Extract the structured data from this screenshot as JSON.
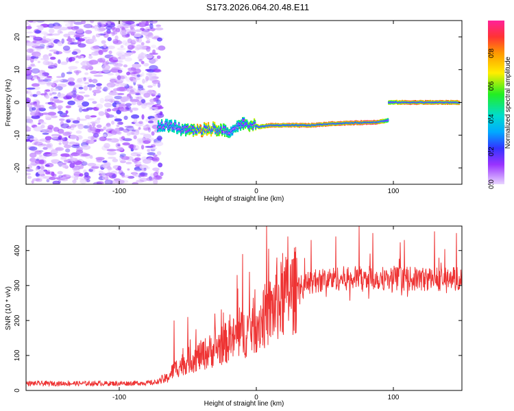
{
  "title": "S173.2026.064.20.48.E11",
  "chart_data": [
    {
      "type": "heatmap",
      "name": "spectrogram",
      "xlabel": "Height of straight line (km)",
      "ylabel": "Frequency (Hz)",
      "xlim": [
        -168,
        150
      ],
      "ylim": [
        -25,
        25
      ],
      "xticks": [
        -100,
        0,
        100
      ],
      "yticks": [
        -20,
        -10,
        0,
        10,
        20
      ],
      "colorbar": {
        "label": "Normalized spectral amplitude",
        "range": [
          0,
          1
        ],
        "ticks": [
          0.0,
          0.2,
          0.4,
          0.6,
          0.8
        ],
        "tick_labels": [
          "0.0",
          "0.2",
          "0.4",
          "0.6",
          "0.8"
        ]
      },
      "noise_region": {
        "x_start": -168,
        "x_end": -72
      },
      "ridge": [
        {
          "x": -72,
          "freq": -7.5,
          "amp": 0.45
        },
        {
          "x": -62,
          "freq": -7.0,
          "amp": 0.45
        },
        {
          "x": -55,
          "freq": -8.0,
          "amp": 0.45
        },
        {
          "x": -48,
          "freq": -8.5,
          "amp": 0.6
        },
        {
          "x": -40,
          "freq": -8.5,
          "amp": 0.8
        },
        {
          "x": -32,
          "freq": -8.0,
          "amp": 0.7
        },
        {
          "x": -24,
          "freq": -8.5,
          "amp": 0.6
        },
        {
          "x": -18,
          "freq": -8.5,
          "amp": 0.4
        },
        {
          "x": -12,
          "freq": -6.5,
          "amp": 0.5
        },
        {
          "x": -5,
          "freq": -6.5,
          "amp": 0.6
        },
        {
          "x": 2,
          "freq": -7.5,
          "amp": 0.7
        },
        {
          "x": 10,
          "freq": -7.0,
          "amp": 0.8
        },
        {
          "x": 40,
          "freq": -7.0,
          "amp": 0.85
        },
        {
          "x": 55,
          "freq": -6.5,
          "amp": 0.85
        },
        {
          "x": 88,
          "freq": -6.0,
          "amp": 0.9
        },
        {
          "x": 96,
          "freq": -5.5,
          "amp": 0.5
        },
        {
          "x": 97,
          "freq": 0.0,
          "amp": 0.6
        },
        {
          "x": 110,
          "freq": 0.0,
          "amp": 0.85
        },
        {
          "x": 148,
          "freq": 0.0,
          "amp": 0.8
        }
      ]
    },
    {
      "type": "line",
      "name": "snr",
      "xlabel": "Height of straight line (km)",
      "ylabel": "SNR (10 * v/v)",
      "xlim": [
        -168,
        150
      ],
      "ylim": [
        0,
        470
      ],
      "xticks": [
        -100,
        0,
        100
      ],
      "yticks": [
        0,
        100,
        200,
        300,
        400
      ],
      "color": "#ee3333",
      "envelope": [
        {
          "x": -168,
          "y": 20
        },
        {
          "x": -100,
          "y": 20
        },
        {
          "x": -75,
          "y": 22
        },
        {
          "x": -65,
          "y": 35
        },
        {
          "x": -60,
          "y": 60
        },
        {
          "x": -50,
          "y": 85
        },
        {
          "x": -40,
          "y": 100
        },
        {
          "x": -30,
          "y": 120
        },
        {
          "x": -20,
          "y": 140
        },
        {
          "x": -10,
          "y": 160
        },
        {
          "x": 0,
          "y": 190
        },
        {
          "x": 10,
          "y": 225
        },
        {
          "x": 20,
          "y": 265
        },
        {
          "x": 30,
          "y": 290
        },
        {
          "x": 40,
          "y": 310
        },
        {
          "x": 50,
          "y": 318
        },
        {
          "x": 60,
          "y": 320
        },
        {
          "x": 80,
          "y": 322
        },
        {
          "x": 100,
          "y": 320
        },
        {
          "x": 120,
          "y": 318
        },
        {
          "x": 150,
          "y": 320
        }
      ],
      "spikes": [
        {
          "x": -60,
          "y": 200
        },
        {
          "x": -50,
          "y": 210
        },
        {
          "x": -44,
          "y": 175
        },
        {
          "x": -30,
          "y": 185
        },
        {
          "x": -10,
          "y": 390
        },
        {
          "x": -14,
          "y": 330
        },
        {
          "x": 15,
          "y": 380
        },
        {
          "x": 23,
          "y": 440
        },
        {
          "x": 40,
          "y": 430
        },
        {
          "x": 58,
          "y": 440
        },
        {
          "x": 75,
          "y": 470
        },
        {
          "x": 85,
          "y": 450
        },
        {
          "x": 108,
          "y": 430
        },
        {
          "x": 130,
          "y": 455
        },
        {
          "x": 146,
          "y": 450
        }
      ]
    }
  ]
}
